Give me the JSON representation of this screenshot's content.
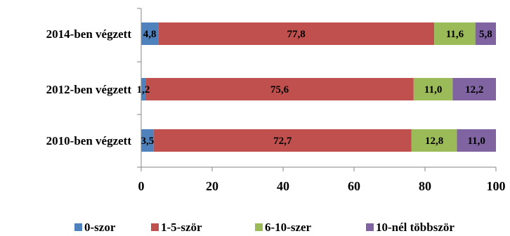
{
  "chart_data": {
    "type": "bar",
    "orientation": "horizontal",
    "stacked": true,
    "categories": [
      "2014-ben végzett",
      "2012-ben végzett",
      "2010-ben végzett"
    ],
    "series": [
      {
        "name": "0-szor",
        "color": "#4F81BD",
        "values": [
          4.8,
          1.2,
          3.5
        ],
        "labels": [
          "4,8",
          "1,2",
          "3,5"
        ]
      },
      {
        "name": "1-5-ször",
        "color": "#C0504D",
        "values": [
          77.8,
          75.6,
          72.7
        ],
        "labels": [
          "77,8",
          "75,6",
          "72,7"
        ]
      },
      {
        "name": "6-10-szer",
        "color": "#9BBB59",
        "values": [
          11.6,
          11.0,
          12.8
        ],
        "labels": [
          "11,6",
          "11,0",
          "12,8"
        ]
      },
      {
        "name": "10-nél többször",
        "color": "#8064A2",
        "values": [
          5.8,
          12.2,
          11.0
        ],
        "labels": [
          "5,8",
          "12,2",
          "11,0"
        ]
      }
    ],
    "xlim": [
      0,
      100
    ],
    "xticks": [
      0,
      20,
      40,
      60,
      80,
      100
    ],
    "xtick_labels": [
      "0",
      "20",
      "40",
      "60",
      "80",
      "100"
    ],
    "grid": false,
    "legend_position": "bottom"
  }
}
